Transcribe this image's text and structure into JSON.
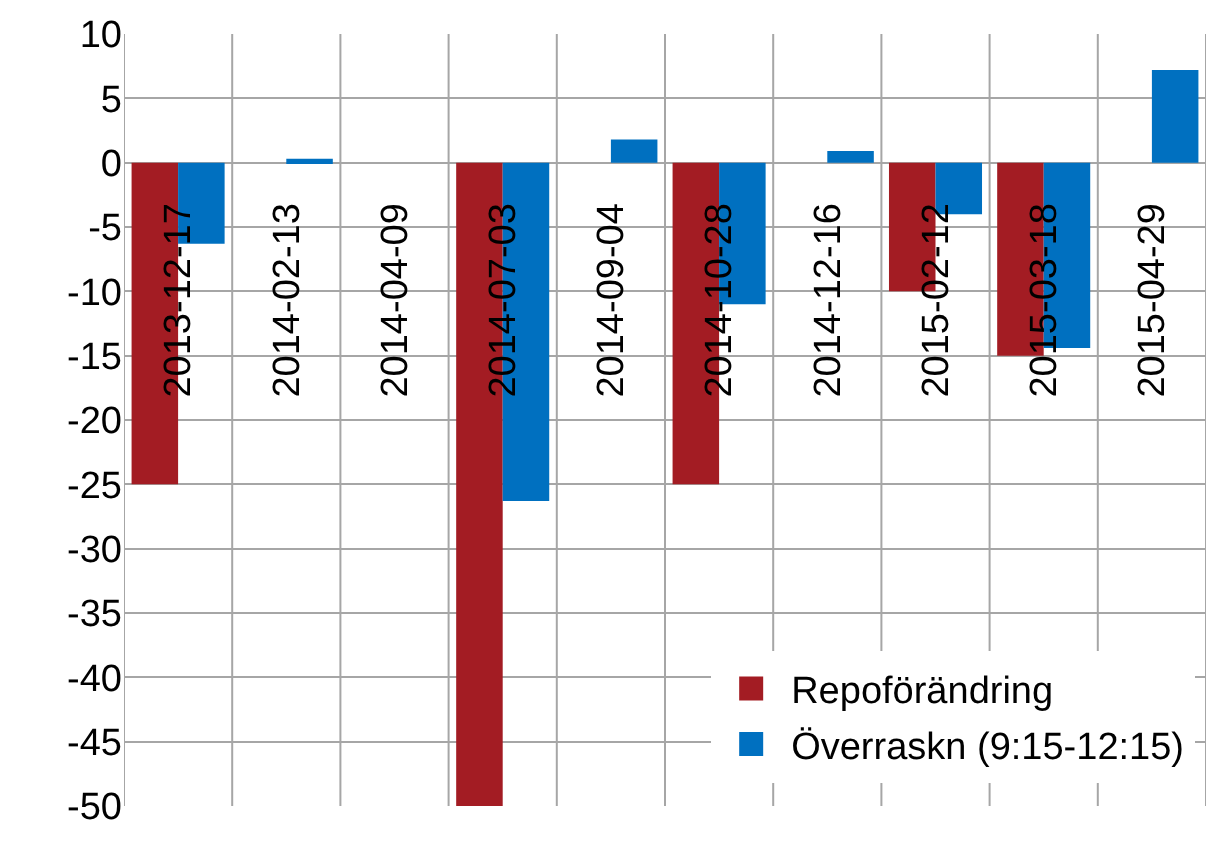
{
  "chart_data": {
    "type": "bar",
    "categories": [
      "2013-12-17",
      "2014-02-13",
      "2014-04-09",
      "2014-07-03",
      "2014-09-04",
      "2014-10-28",
      "2014-12-16",
      "2015-02-12",
      "2015-03-18",
      "2015-04-29"
    ],
    "series": [
      {
        "name": "Repoförändring",
        "color": "#a31c23",
        "values": [
          -25,
          0,
          0,
          -50,
          0,
          -25,
          0,
          -10,
          -15,
          0
        ]
      },
      {
        "name": "Överraskn (9:15-12:15)",
        "color": "#0070c0",
        "values": [
          -6.3,
          0.3,
          0,
          -26.3,
          1.8,
          -11,
          0.9,
          -4,
          -14.4,
          7.2
        ]
      }
    ],
    "ylim": [
      -50,
      10
    ],
    "yticks": [
      -50,
      -45,
      -40,
      -35,
      -30,
      -25,
      -20,
      -15,
      -10,
      -5,
      0,
      5,
      10
    ],
    "grid": true,
    "legend": "bottom right"
  }
}
